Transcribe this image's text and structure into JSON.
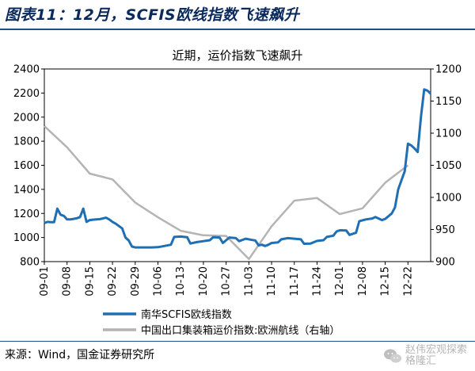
{
  "figure_title": "图表11：12月，SCFIS欧线指数飞速飙升",
  "source": "来源：Wind，国金证券研究所",
  "watermark": {
    "line1": "赵伟宏观探索",
    "line2": "格隆汇",
    "icon": "wechat-icon"
  },
  "colors": {
    "primary": "#1f6fb2",
    "secondary": "#b4b4b4",
    "title": "#0b2a5c"
  },
  "chart_data": {
    "type": "line",
    "title": "近期，运价指数飞速飙升",
    "x_tick_labels": [
      "09-01",
      "09-08",
      "09-15",
      "09-22",
      "09-29",
      "10-06",
      "10-13",
      "10-20",
      "10-27",
      "11-03",
      "11-10",
      "11-17",
      "11-24",
      "12-01",
      "12-08",
      "12-15",
      "12-22"
    ],
    "x_start": "09-01",
    "x_end": "12-29",
    "y_left": {
      "min": 800,
      "max": 2400,
      "ticks": [
        800,
        1000,
        1200,
        1400,
        1600,
        1800,
        2000,
        2200,
        2400
      ]
    },
    "y_right": {
      "min": 900,
      "max": 1200,
      "ticks": [
        900,
        950,
        1000,
        1050,
        1100,
        1150,
        1200
      ]
    },
    "grid": false,
    "legend_position": "bottom",
    "series": [
      {
        "name": "南华SCFIS欧线指数",
        "axis": "left",
        "color": "#1f6fb2",
        "points": [
          [
            "09-01",
            1120
          ],
          [
            "09-02",
            1130
          ],
          [
            "09-03",
            1128
          ],
          [
            "09-04",
            1127
          ],
          [
            "09-05",
            1240
          ],
          [
            "09-06",
            1190
          ],
          [
            "09-07",
            1180
          ],
          [
            "09-08",
            1150
          ],
          [
            "09-09",
            1150
          ],
          [
            "09-10",
            1155
          ],
          [
            "09-11",
            1160
          ],
          [
            "09-12",
            1170
          ],
          [
            "09-13",
            1240
          ],
          [
            "09-14",
            1130
          ],
          [
            "09-15",
            1145
          ],
          [
            "09-16",
            1148
          ],
          [
            "09-17",
            1150
          ],
          [
            "09-18",
            1152
          ],
          [
            "09-19",
            1158
          ],
          [
            "09-20",
            1165
          ],
          [
            "09-21",
            1150
          ],
          [
            "09-22",
            1130
          ],
          [
            "09-23",
            1115
          ],
          [
            "09-24",
            1095
          ],
          [
            "09-25",
            1075
          ],
          [
            "09-26",
            1000
          ],
          [
            "09-27",
            975
          ],
          [
            "09-28",
            925
          ],
          [
            "09-29",
            918
          ],
          [
            "10-01",
            918
          ],
          [
            "10-04",
            918
          ],
          [
            "10-06",
            920
          ],
          [
            "10-08",
            930
          ],
          [
            "10-10",
            940
          ],
          [
            "10-11",
            1005
          ],
          [
            "10-13",
            1008
          ],
          [
            "10-15",
            1003
          ],
          [
            "10-16",
            950
          ],
          [
            "10-18",
            962
          ],
          [
            "10-20",
            970
          ],
          [
            "10-22",
            978
          ],
          [
            "10-23",
            1003
          ],
          [
            "10-25",
            1000
          ],
          [
            "10-26",
            955
          ],
          [
            "10-28",
            1000
          ],
          [
            "10-30",
            995
          ],
          [
            "10-31",
            970
          ],
          [
            "11-02",
            990
          ],
          [
            "11-04",
            980
          ],
          [
            "11-05",
            975
          ],
          [
            "11-06",
            935
          ],
          [
            "11-07",
            940
          ],
          [
            "11-08",
            930
          ],
          [
            "11-09",
            940
          ],
          [
            "11-10",
            955
          ],
          [
            "11-12",
            960
          ],
          [
            "11-13",
            985
          ],
          [
            "11-15",
            995
          ],
          [
            "11-17",
            990
          ],
          [
            "11-19",
            985
          ],
          [
            "11-20",
            948
          ],
          [
            "11-22",
            950
          ],
          [
            "11-24",
            972
          ],
          [
            "11-26",
            978
          ],
          [
            "11-27",
            1005
          ],
          [
            "11-29",
            1015
          ],
          [
            "11-30",
            1050
          ],
          [
            "12-01",
            1060
          ],
          [
            "12-03",
            1058
          ],
          [
            "12-04",
            1022
          ],
          [
            "12-06",
            1040
          ],
          [
            "12-07",
            1135
          ],
          [
            "12-09",
            1150
          ],
          [
            "12-11",
            1158
          ],
          [
            "12-12",
            1170
          ],
          [
            "12-14",
            1145
          ],
          [
            "12-15",
            1155
          ],
          [
            "12-17",
            1200
          ],
          [
            "12-18",
            1250
          ],
          [
            "12-19",
            1400
          ],
          [
            "12-21",
            1550
          ],
          [
            "12-22",
            1780
          ],
          [
            "12-23",
            1765
          ],
          [
            "12-24",
            1740
          ],
          [
            "12-25",
            1710
          ],
          [
            "12-26",
            2000
          ],
          [
            "12-27",
            2230
          ],
          [
            "12-28",
            2220
          ],
          [
            "12-29",
            2195
          ]
        ]
      },
      {
        "name": "中国出口集装箱运价指数:欧洲航线（右轴）",
        "axis": "right",
        "color": "#b4b4b4",
        "points": [
          [
            "09-01",
            1111
          ],
          [
            "09-08",
            1078
          ],
          [
            "09-15",
            1037
          ],
          [
            "09-22",
            1028
          ],
          [
            "09-29",
            992
          ],
          [
            "10-06",
            969
          ],
          [
            "10-13",
            948
          ],
          [
            "10-20",
            941
          ],
          [
            "10-27",
            940
          ],
          [
            "11-03",
            904
          ],
          [
            "11-10",
            955
          ],
          [
            "11-17",
            995
          ],
          [
            "11-24",
            999
          ],
          [
            "12-01",
            974
          ],
          [
            "12-08",
            983
          ],
          [
            "12-15",
            1023
          ],
          [
            "12-22",
            1050
          ]
        ]
      }
    ]
  }
}
